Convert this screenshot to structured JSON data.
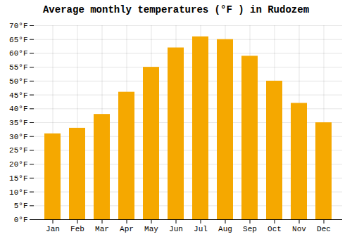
{
  "chart_data": {
    "type": "bar",
    "title": "Average monthly temperatures (°F ) in Rudozem",
    "categories": [
      "Jan",
      "Feb",
      "Mar",
      "Apr",
      "May",
      "Jun",
      "Jul",
      "Aug",
      "Sep",
      "Oct",
      "Nov",
      "Dec"
    ],
    "values": [
      31,
      33,
      38,
      46,
      55,
      62,
      66,
      65,
      59,
      50,
      42,
      35
    ],
    "color": "#F5A800",
    "ylim": [
      0,
      70
    ],
    "yticks": [
      {
        "value": 0,
        "label": "0°F"
      },
      {
        "value": 5,
        "label": "5°F"
      },
      {
        "value": 10,
        "label": "10°F"
      },
      {
        "value": 15,
        "label": "15°F"
      },
      {
        "value": 20,
        "label": "20°F"
      },
      {
        "value": 25,
        "label": "25°F"
      },
      {
        "value": 30,
        "label": "30°F"
      },
      {
        "value": 35,
        "label": "35°F"
      },
      {
        "value": 40,
        "label": "40°F"
      },
      {
        "value": 45,
        "label": "45°F"
      },
      {
        "value": 50,
        "label": "50°F"
      },
      {
        "value": 55,
        "label": "55°F"
      },
      {
        "value": 60,
        "label": "60°F"
      },
      {
        "value": 65,
        "label": "65°F"
      },
      {
        "value": 70,
        "label": "70°F"
      }
    ],
    "grid": true
  }
}
